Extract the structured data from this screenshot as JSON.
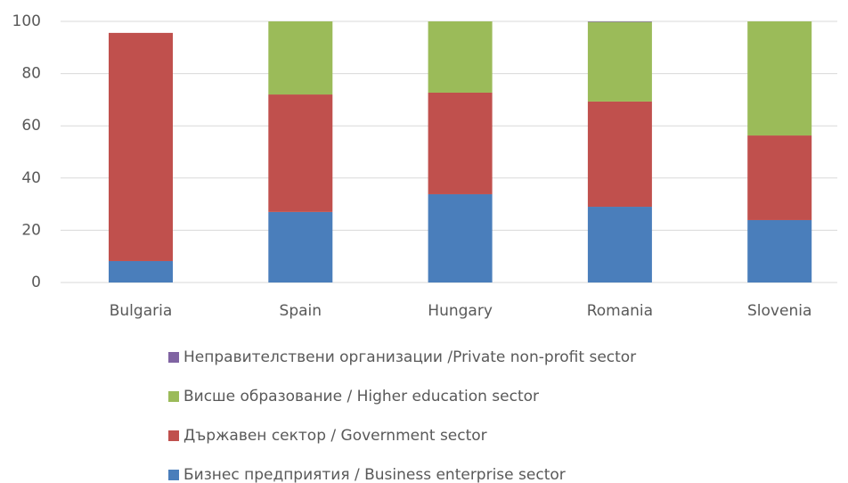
{
  "chart_data": {
    "type": "stacked_bar",
    "categories": [
      "Bulgaria",
      "Spain",
      "Hungary",
      "Romania",
      "Slovenia"
    ],
    "series": [
      {
        "name": "Бизнес предприятия / Business enterprise sector",
        "color": "#4a7ebb",
        "values": [
          8.2,
          27,
          33.8,
          29,
          23.9
        ]
      },
      {
        "name": "Държавен сектор / Government sector",
        "color": "#c0504d",
        "values": [
          87.4,
          45,
          38.9,
          40.3,
          32.4
        ]
      },
      {
        "name": "Висше образование / Higher education sector",
        "color": "#9bbb59",
        "values": [
          0,
          28,
          27.3,
          30.5,
          43.7
        ]
      },
      {
        "name": "Неправителствени организации /Private non-profit sector",
        "color": "#8064a2",
        "values": [
          0,
          0,
          0,
          0.2,
          0
        ]
      }
    ],
    "ylim": [
      0,
      100
    ],
    "yticks": [
      0,
      20,
      40,
      60,
      80,
      100
    ],
    "grid": true
  }
}
